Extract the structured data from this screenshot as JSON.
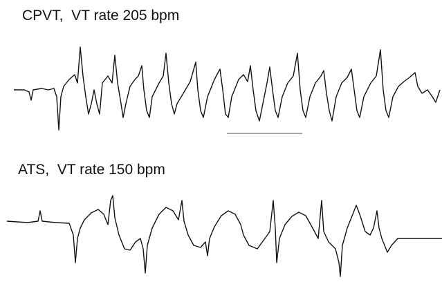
{
  "panels": [
    {
      "label": "CPVT,  VT rate 205 bpm"
    },
    {
      "label": "ATS,  VT rate 150 bpm"
    }
  ]
}
